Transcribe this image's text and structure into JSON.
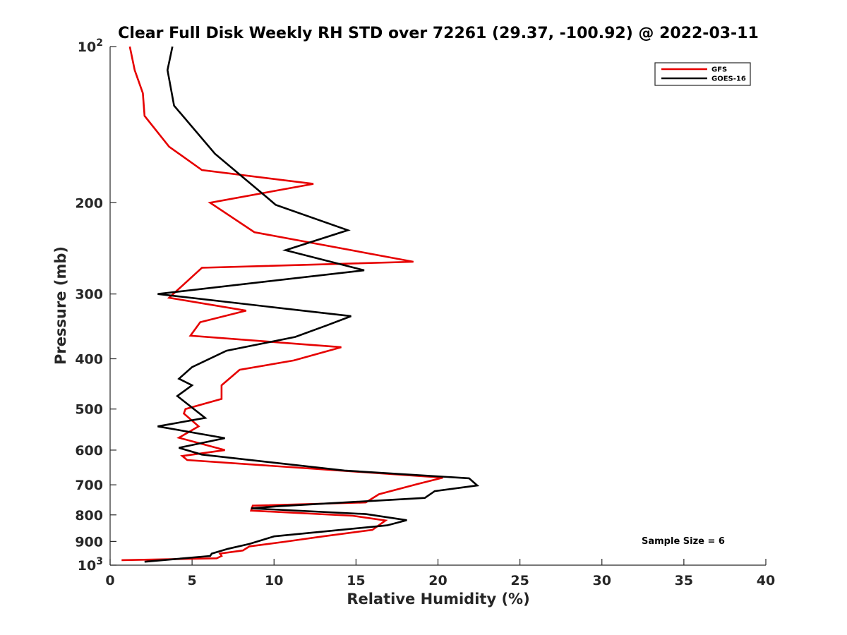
{
  "chart_data": {
    "type": "line",
    "title": "Clear Full Disk Weekly RH STD over 72261 (29.37, -100.92) @ 2022-03-11",
    "xlabel": "Relative Humidity (%)",
    "ylabel": "Pressure (mb)",
    "xlim": [
      0,
      40
    ],
    "ylim": [
      100,
      1000
    ],
    "y_scale": "log",
    "y_reversed": true,
    "x_ticks": [
      "0",
      "5",
      "10",
      "15",
      "20",
      "25",
      "30",
      "35",
      "40"
    ],
    "y_ticks": [
      {
        "value": 100,
        "base": "10",
        "exp": "2"
      },
      {
        "value": 200,
        "label": "200"
      },
      {
        "value": 300,
        "label": "300"
      },
      {
        "value": 400,
        "label": "400"
      },
      {
        "value": 500,
        "label": "500"
      },
      {
        "value": 600,
        "label": "600"
      },
      {
        "value": 700,
        "label": "700"
      },
      {
        "value": 800,
        "label": "800"
      },
      {
        "value": 900,
        "label": "900"
      },
      {
        "value": 1000,
        "base": "10",
        "exp": "3"
      }
    ],
    "grid": false,
    "legend_position": "top-right",
    "annotation": "Sample Size = 6",
    "series": [
      {
        "name": "GFS",
        "color": "#e60000",
        "x": [
          1.2,
          1.5,
          2.0,
          2.1,
          3.6,
          5.6,
          12.4,
          6.1,
          8.8,
          18.5,
          5.6,
          3.6,
          8.3,
          5.5,
          4.9,
          14.1,
          11.2,
          7.9,
          6.8,
          6.8,
          4.6,
          4.5,
          5.4,
          4.2,
          7.0,
          4.4,
          4.7,
          20.3,
          18.8,
          16.4,
          15.6,
          8.7,
          8.6,
          14.8,
          16.8,
          16.0,
          13.0,
          10.8,
          8.5,
          8.1,
          6.7,
          6.8,
          6.5,
          0.7
        ],
        "y": [
          100,
          111,
          123,
          136,
          156,
          173,
          184,
          200,
          228,
          260,
          267,
          305,
          323,
          340,
          361,
          380,
          403,
          420,
          450,
          478,
          500,
          510,
          540,
          568,
          600,
          616,
          627,
          678,
          697,
          730,
          757,
          768,
          785,
          803,
          820,
          855,
          880,
          900,
          920,
          937,
          950,
          960,
          970,
          978
        ]
      },
      {
        "name": "GOES-16",
        "color": "#000000",
        "x": [
          3.8,
          3.5,
          3.9,
          6.4,
          9.7,
          10.1,
          14.5,
          10.7,
          15.5,
          2.9,
          14.7,
          13.2,
          11.3,
          7.1,
          5.0,
          4.2,
          5.0,
          4.1,
          5.8,
          2.9,
          7.0,
          4.2,
          5.6,
          14.3,
          21.9,
          22.4,
          19.8,
          19.2,
          10.2,
          8.6,
          15.6,
          18.1,
          16.9,
          10.0,
          8.5,
          7.2,
          6.2,
          6.1,
          2.1
        ],
        "y": [
          100,
          111,
          130,
          161,
          197,
          202,
          226,
          247,
          270,
          300,
          331,
          345,
          363,
          386,
          415,
          437,
          450,
          472,
          520,
          540,
          569,
          594,
          612,
          657,
          680,
          702,
          720,
          742,
          770,
          777,
          797,
          819,
          838,
          880,
          910,
          930,
          950,
          960,
          985
        ]
      }
    ]
  }
}
